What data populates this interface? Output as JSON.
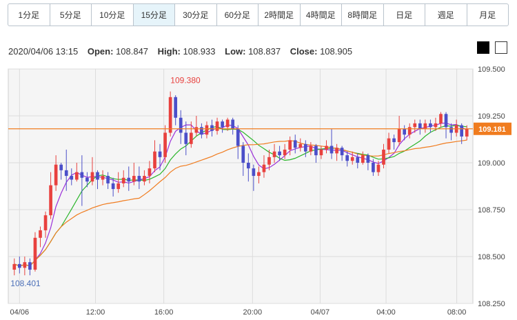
{
  "timeframe_tabs": [
    "1分足",
    "5分足",
    "10分足",
    "15分足",
    "30分足",
    "60分足",
    "2時間足",
    "4時間足",
    "8時間足",
    "日足",
    "週足",
    "月足"
  ],
  "active_tab": "15分足",
  "ohlc": {
    "timestamp": "2020/04/06 13:15",
    "open_label": "Open:",
    "open": "108.847",
    "high_label": "High:",
    "high": "108.933",
    "low_label": "Low:",
    "low": "108.837",
    "close_label": "Close:",
    "close": "108.905"
  },
  "colors": {
    "up": "#e8413e",
    "down": "#4b4fc9",
    "ma_short": "#9b2fd9",
    "ma_mid": "#2ab52a",
    "ma_long": "#f07c1f",
    "current": "#f07c1f"
  },
  "chart_data": {
    "type": "candlestick",
    "y_ticks": [
      "109.500",
      "109.250",
      "109.000",
      "108.750",
      "108.500",
      "108.250"
    ],
    "ylim": [
      108.25,
      109.5
    ],
    "x_ticks": [
      "04/06",
      "12:00",
      "16:00",
      "20:00",
      "04/07",
      "04:00",
      "08:00"
    ],
    "current_price": "109.181",
    "high_annotation": "109.380",
    "low_annotation": "108.401",
    "candles": [
      [
        108.43,
        108.46,
        108.4,
        108.49
      ],
      [
        108.46,
        108.44,
        108.41,
        108.5
      ],
      [
        108.44,
        108.47,
        108.4,
        108.5
      ],
      [
        108.47,
        108.43,
        108.4,
        108.49
      ],
      [
        108.43,
        108.6,
        108.42,
        108.63
      ],
      [
        108.6,
        108.64,
        108.55,
        108.66
      ],
      [
        108.64,
        108.72,
        108.6,
        108.74
      ],
      [
        108.72,
        108.88,
        108.7,
        108.95
      ],
      [
        108.88,
        108.99,
        108.85,
        109.04
      ],
      [
        108.99,
        108.96,
        108.91,
        109.0
      ],
      [
        108.96,
        108.93,
        108.85,
        109.07
      ],
      [
        108.93,
        108.91,
        108.88,
        108.97
      ],
      [
        108.91,
        108.95,
        108.9,
        109.0
      ],
      [
        108.95,
        108.92,
        108.77,
        109.04
      ],
      [
        108.92,
        108.9,
        108.87,
        108.95
      ],
      [
        108.9,
        108.95,
        108.88,
        109.03
      ],
      [
        108.95,
        108.91,
        108.86,
        108.96
      ],
      [
        108.91,
        108.93,
        108.88,
        108.96
      ],
      [
        108.93,
        108.89,
        108.86,
        108.95
      ],
      [
        108.89,
        108.86,
        108.82,
        108.92
      ],
      [
        108.86,
        108.89,
        108.84,
        108.95
      ],
      [
        108.89,
        108.92,
        108.87,
        108.96
      ],
      [
        108.92,
        108.9,
        108.85,
        108.98
      ],
      [
        108.9,
        108.93,
        108.88,
        109.0
      ],
      [
        108.93,
        108.9,
        108.86,
        108.98
      ],
      [
        108.9,
        108.93,
        108.88,
        108.96
      ],
      [
        108.93,
        108.97,
        108.89,
        109.01
      ],
      [
        108.97,
        109.06,
        108.95,
        109.12
      ],
      [
        109.06,
        109.03,
        108.96,
        109.1
      ],
      [
        109.03,
        109.16,
        109.0,
        109.2
      ],
      [
        109.16,
        109.35,
        109.14,
        109.38
      ],
      [
        109.35,
        109.24,
        109.2,
        109.36
      ],
      [
        109.24,
        109.16,
        109.1,
        109.28
      ],
      [
        109.16,
        109.1,
        109.04,
        109.22
      ],
      [
        109.1,
        109.16,
        109.08,
        109.22
      ],
      [
        109.16,
        109.19,
        109.14,
        109.25
      ],
      [
        109.19,
        109.15,
        109.13,
        109.21
      ],
      [
        109.15,
        109.2,
        109.13,
        109.22
      ],
      [
        109.2,
        109.17,
        109.14,
        109.23
      ],
      [
        109.17,
        109.22,
        109.15,
        109.24
      ],
      [
        109.22,
        109.19,
        109.16,
        109.23
      ],
      [
        109.19,
        109.23,
        109.17,
        109.24
      ],
      [
        109.23,
        109.18,
        109.15,
        109.24
      ],
      [
        109.18,
        109.09,
        109.02,
        109.2
      ],
      [
        109.09,
        109.0,
        108.93,
        109.11
      ],
      [
        109.0,
        108.97,
        108.9,
        109.05
      ],
      [
        108.97,
        108.93,
        108.85,
        108.99
      ],
      [
        108.93,
        108.95,
        108.89,
        108.98
      ],
      [
        108.95,
        108.99,
        108.92,
        109.04
      ],
      [
        108.99,
        109.03,
        108.96,
        109.07
      ],
      [
        109.03,
        109.06,
        109.0,
        109.1
      ],
      [
        109.06,
        109.04,
        109.01,
        109.09
      ],
      [
        109.04,
        109.07,
        109.02,
        109.1
      ],
      [
        109.07,
        109.12,
        109.04,
        109.14
      ],
      [
        109.12,
        109.08,
        109.05,
        109.15
      ],
      [
        109.08,
        109.1,
        109.06,
        109.13
      ],
      [
        109.1,
        109.06,
        109.03,
        109.12
      ],
      [
        109.06,
        109.09,
        109.04,
        109.11
      ],
      [
        109.09,
        109.04,
        109.0,
        109.1
      ],
      [
        109.04,
        109.07,
        109.02,
        109.09
      ],
      [
        109.07,
        109.09,
        109.05,
        109.12
      ],
      [
        109.09,
        109.05,
        109.02,
        109.18
      ],
      [
        109.05,
        109.08,
        109.01,
        109.1
      ],
      [
        109.08,
        109.04,
        109.01,
        109.09
      ],
      [
        109.04,
        109.01,
        108.98,
        109.06
      ],
      [
        109.01,
        109.03,
        108.99,
        109.06
      ],
      [
        109.03,
        109.0,
        108.97,
        109.05
      ],
      [
        109.0,
        109.04,
        108.99,
        109.06
      ],
      [
        109.04,
        109.0,
        108.96,
        109.05
      ],
      [
        109.0,
        108.95,
        108.93,
        109.02
      ],
      [
        108.95,
        108.99,
        108.93,
        109.01
      ],
      [
        108.99,
        109.07,
        108.97,
        109.1
      ],
      [
        109.07,
        109.13,
        109.05,
        109.16
      ],
      [
        109.13,
        109.11,
        109.07,
        109.15
      ],
      [
        109.11,
        109.18,
        109.09,
        109.25
      ],
      [
        109.18,
        109.15,
        109.12,
        109.2
      ],
      [
        109.15,
        109.19,
        109.13,
        109.21
      ],
      [
        109.19,
        109.21,
        109.16,
        109.23
      ],
      [
        109.21,
        109.18,
        109.15,
        109.23
      ],
      [
        109.18,
        109.21,
        109.16,
        109.23
      ],
      [
        109.21,
        109.19,
        109.16,
        109.23
      ],
      [
        109.19,
        109.21,
        109.17,
        109.24
      ],
      [
        109.21,
        109.26,
        109.19,
        109.27
      ],
      [
        109.26,
        109.19,
        109.13,
        109.27
      ],
      [
        109.19,
        109.16,
        109.12,
        109.21
      ],
      [
        109.16,
        109.2,
        109.14,
        109.23
      ],
      [
        109.2,
        109.14,
        109.1,
        109.21
      ],
      [
        109.14,
        109.18,
        109.12,
        109.2
      ]
    ]
  }
}
